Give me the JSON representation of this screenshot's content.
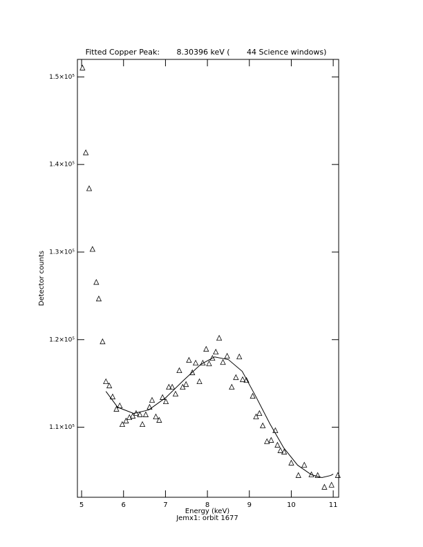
{
  "chart_data": {
    "type": "scatter",
    "title": "Fitted Copper Peak:       8.30396 keV (       44 Science windows)",
    "x_label": "Energy (keV)",
    "subtitle": "Jemx1: orbit 1677",
    "y_label": "Detector counts",
    "xlim": [
      4.9,
      11.13
    ],
    "ylim": [
      102000,
      152000
    ],
    "xticks": [
      5,
      6,
      7,
      8,
      9,
      10,
      11
    ],
    "yticks": [
      {
        "value": 110000,
        "label": "1.1×10⁵"
      },
      {
        "value": 120000,
        "label": "1.2×10⁵"
      },
      {
        "value": 130000,
        "label": "1.3×10⁵"
      },
      {
        "value": 140000,
        "label": "1.4×10⁵"
      },
      {
        "value": 150000,
        "label": "1.5×10⁵"
      }
    ],
    "color": "#000000",
    "series": [
      {
        "style": "markers",
        "marker": "triangle",
        "x": [
          5.02,
          5.1,
          5.18,
          5.26,
          5.35,
          5.41,
          5.5,
          5.58,
          5.66,
          5.74,
          5.83,
          5.91,
          5.97,
          6.06,
          6.14,
          6.22,
          6.3,
          6.39,
          6.45,
          6.53,
          6.62,
          6.68,
          6.77,
          6.85,
          6.93,
          7.01,
          7.08,
          7.16,
          7.24,
          7.33,
          7.41,
          7.49,
          7.56,
          7.64,
          7.72,
          7.81,
          7.89,
          7.97,
          8.04,
          8.12,
          8.2,
          8.28,
          8.37,
          8.47,
          8.58,
          8.68,
          8.76,
          8.84,
          8.93,
          9.08,
          9.16,
          9.24,
          9.32,
          9.42,
          9.52,
          9.62,
          9.67,
          9.74,
          9.83,
          10.0,
          10.17,
          10.31,
          10.48,
          10.63,
          10.79,
          10.96,
          11.11
        ],
        "values": [
          151020,
          141340,
          137240,
          130310,
          126540,
          124650,
          119760,
          115200,
          114720,
          113460,
          112050,
          112440,
          110310,
          110710,
          111100,
          111260,
          111570,
          111420,
          110310,
          111420,
          112280,
          113070,
          111180,
          110790,
          113390,
          112910,
          114570,
          114570,
          113780,
          116460,
          114570,
          114880,
          117640,
          116220,
          117320,
          115200,
          117320,
          118900,
          117240,
          117870,
          118580,
          120160,
          117400,
          118110,
          114570,
          115670,
          118030,
          115430,
          115350,
          113540,
          111180,
          111570,
          110160,
          108350,
          108500,
          109610,
          107950,
          107320,
          107160,
          105910,
          104490,
          105670,
          104570,
          104490,
          103150,
          103390,
          104490
        ]
      },
      {
        "style": "line",
        "x": [
          5.58,
          5.86,
          6.24,
          6.6,
          7.01,
          7.43,
          7.84,
          8.17,
          8.5,
          8.83,
          9.16,
          9.49,
          9.82,
          10.15,
          10.48,
          10.73,
          10.94,
          11.0
        ],
        "values": [
          114090,
          112280,
          111570,
          111970,
          113390,
          115350,
          117170,
          118030,
          117720,
          116380,
          113460,
          110390,
          107640,
          105670,
          104570,
          104250,
          104490,
          104650
        ]
      }
    ]
  }
}
